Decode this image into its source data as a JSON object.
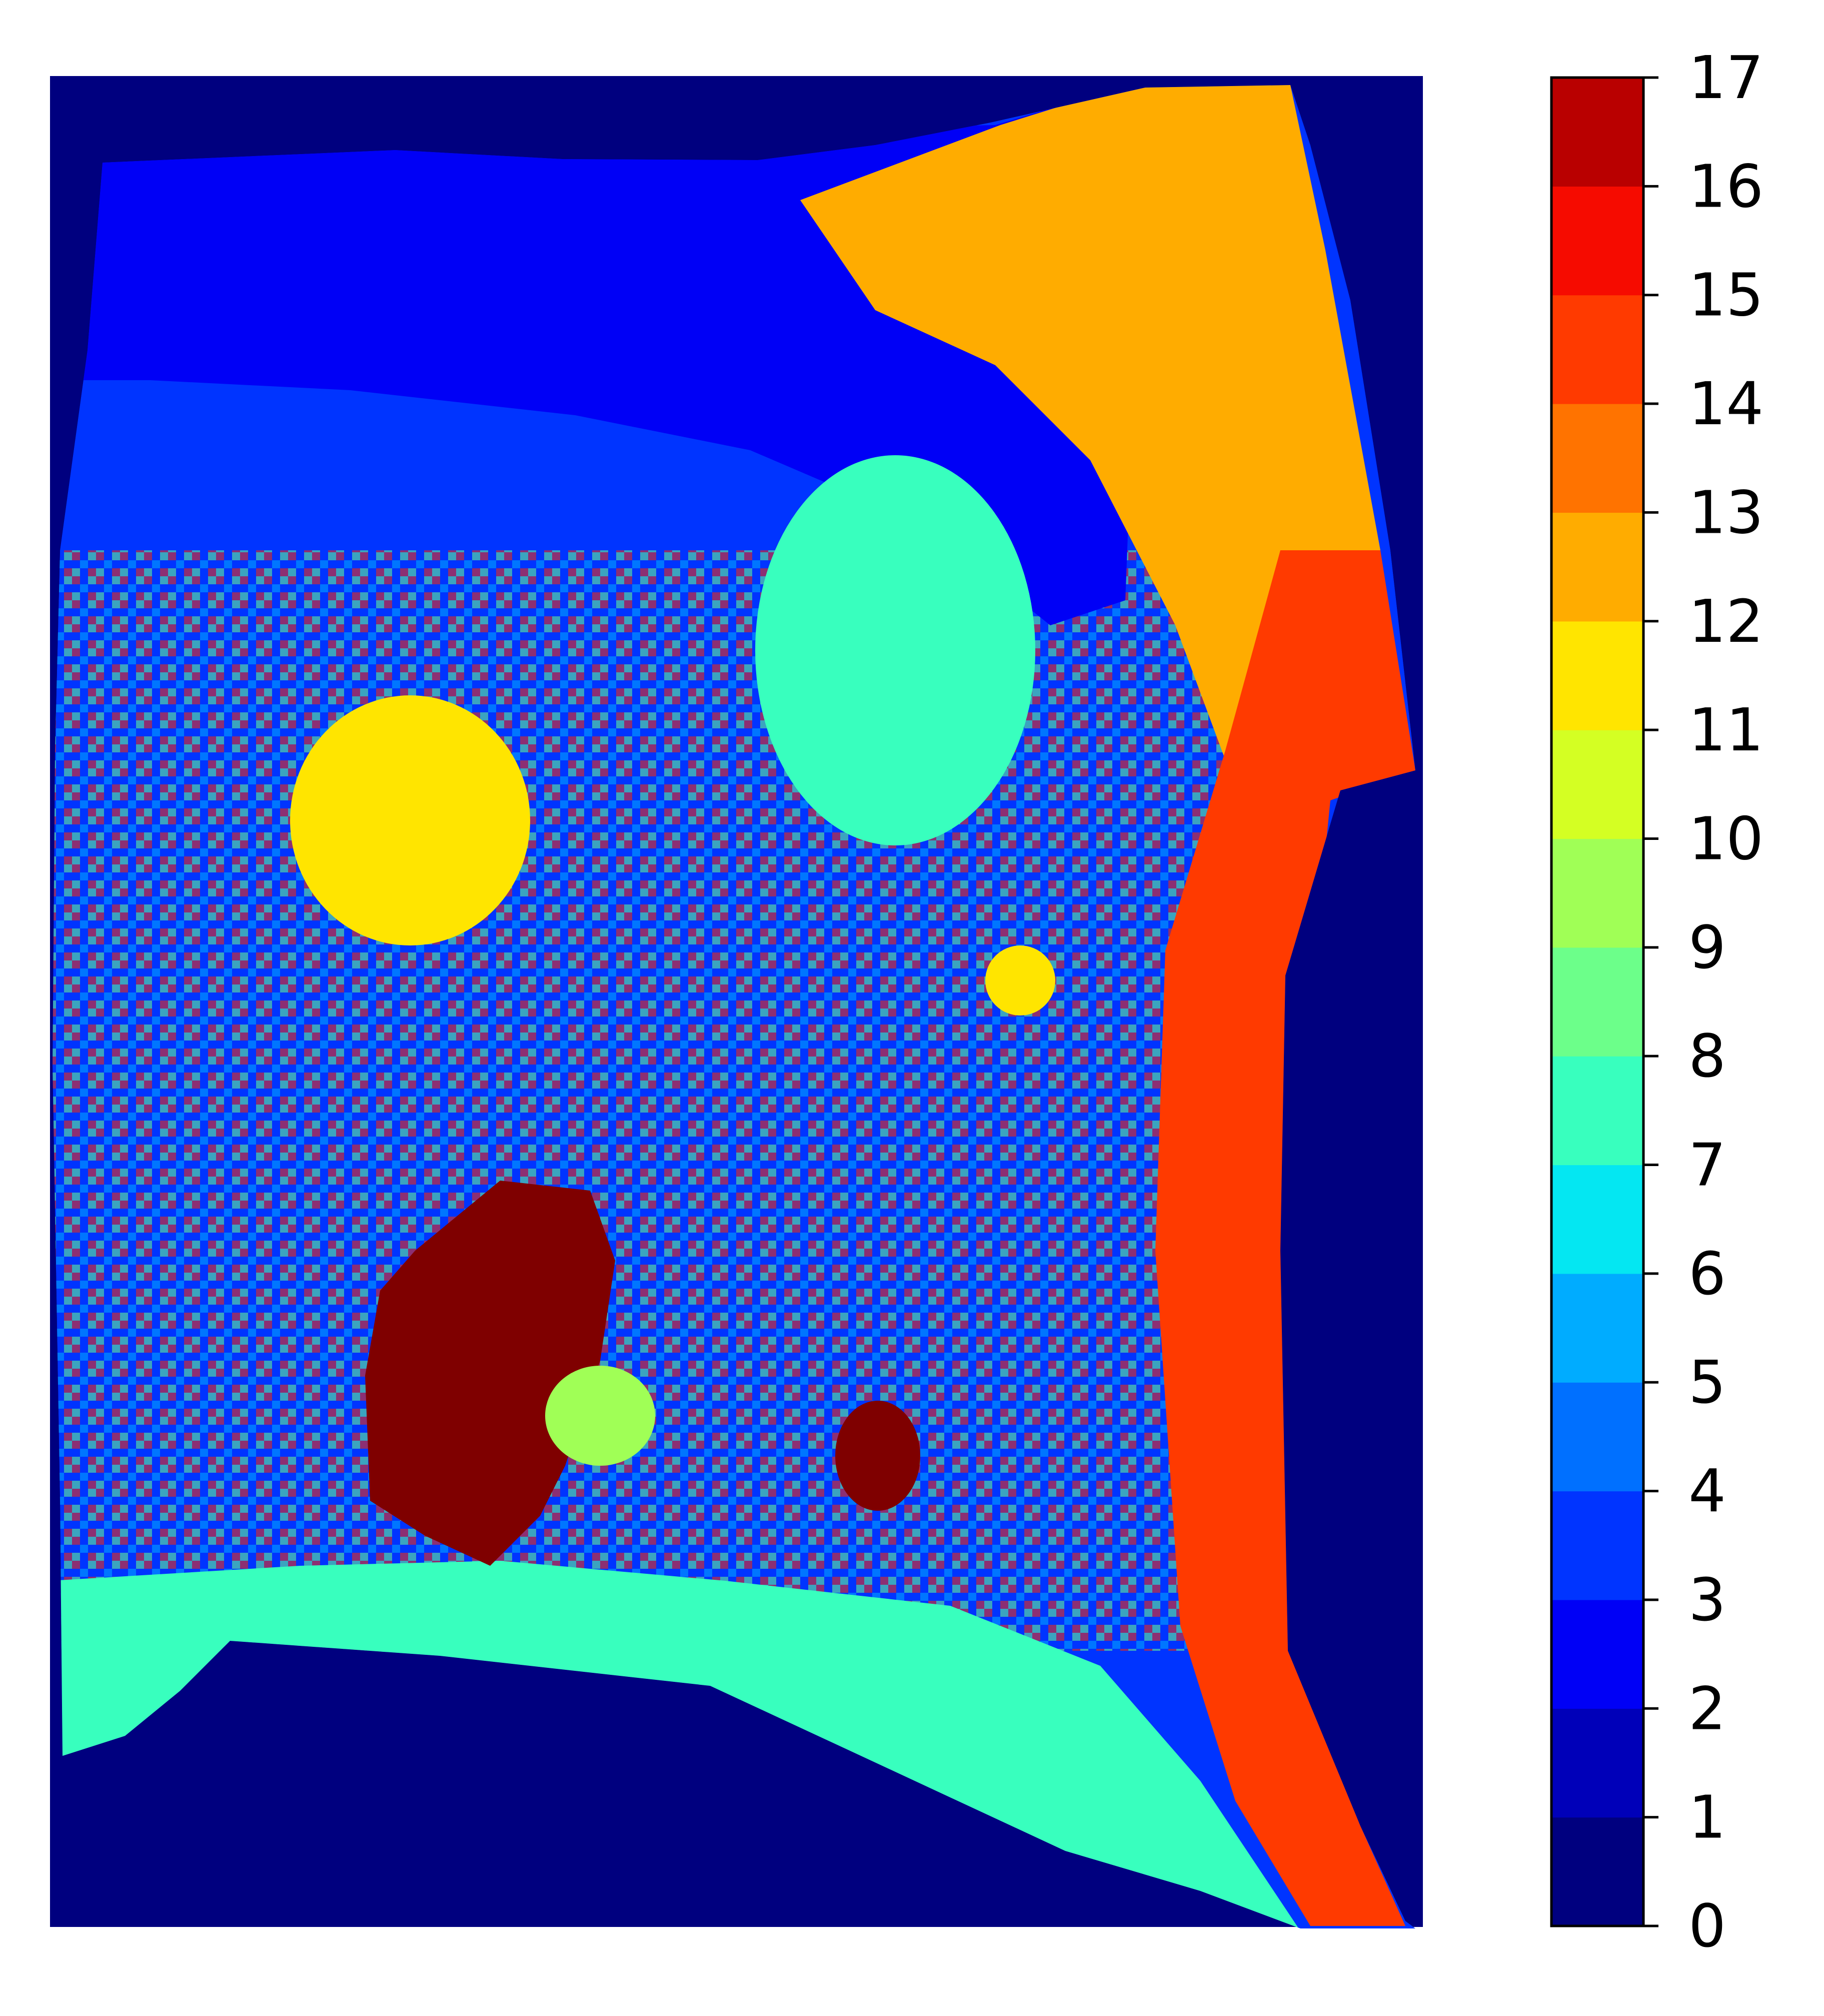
{
  "chart_data": {
    "type": "heatmap",
    "title": "",
    "xlabel": "",
    "ylabel": "",
    "colormap": "jet",
    "discrete_levels": 17,
    "value_range": [
      0,
      17
    ],
    "background_value": 0,
    "colorbar": {
      "position": "right",
      "ticks": [
        "0",
        "1",
        "2",
        "3",
        "4",
        "5",
        "6",
        "7",
        "8",
        "9",
        "10",
        "11",
        "12",
        "13",
        "14",
        "15",
        "16",
        "17"
      ],
      "colors": [
        "#00007f",
        "#0000b9",
        "#0000f6",
        "#0034ff",
        "#0070ff",
        "#00acff",
        "#04e7f2",
        "#38ffbe",
        "#6cff8a",
        "#a0ff56",
        "#d4ff23",
        "#ffe500",
        "#ffac00",
        "#ff7300",
        "#ff3a00",
        "#f60b00",
        "#b90000",
        "#7f0000"
      ]
    },
    "regions": [
      {
        "label": "tissue-background",
        "value": 3
      },
      {
        "label": "top-band",
        "value": 2
      },
      {
        "label": "top-right-band",
        "value": 12
      },
      {
        "label": "right-edge-band",
        "value": 14
      },
      {
        "label": "bottom-band",
        "value": 7
      },
      {
        "label": "left-circular-region",
        "value": 11
      },
      {
        "label": "upper-center-region",
        "value": 7
      },
      {
        "label": "lower-left-dark-region",
        "value": 17
      },
      {
        "label": "lower-center-small-region",
        "value": 17
      },
      {
        "label": "small-yellow-spot",
        "value": 11
      },
      {
        "label": "green-spot",
        "value": 9
      }
    ]
  }
}
